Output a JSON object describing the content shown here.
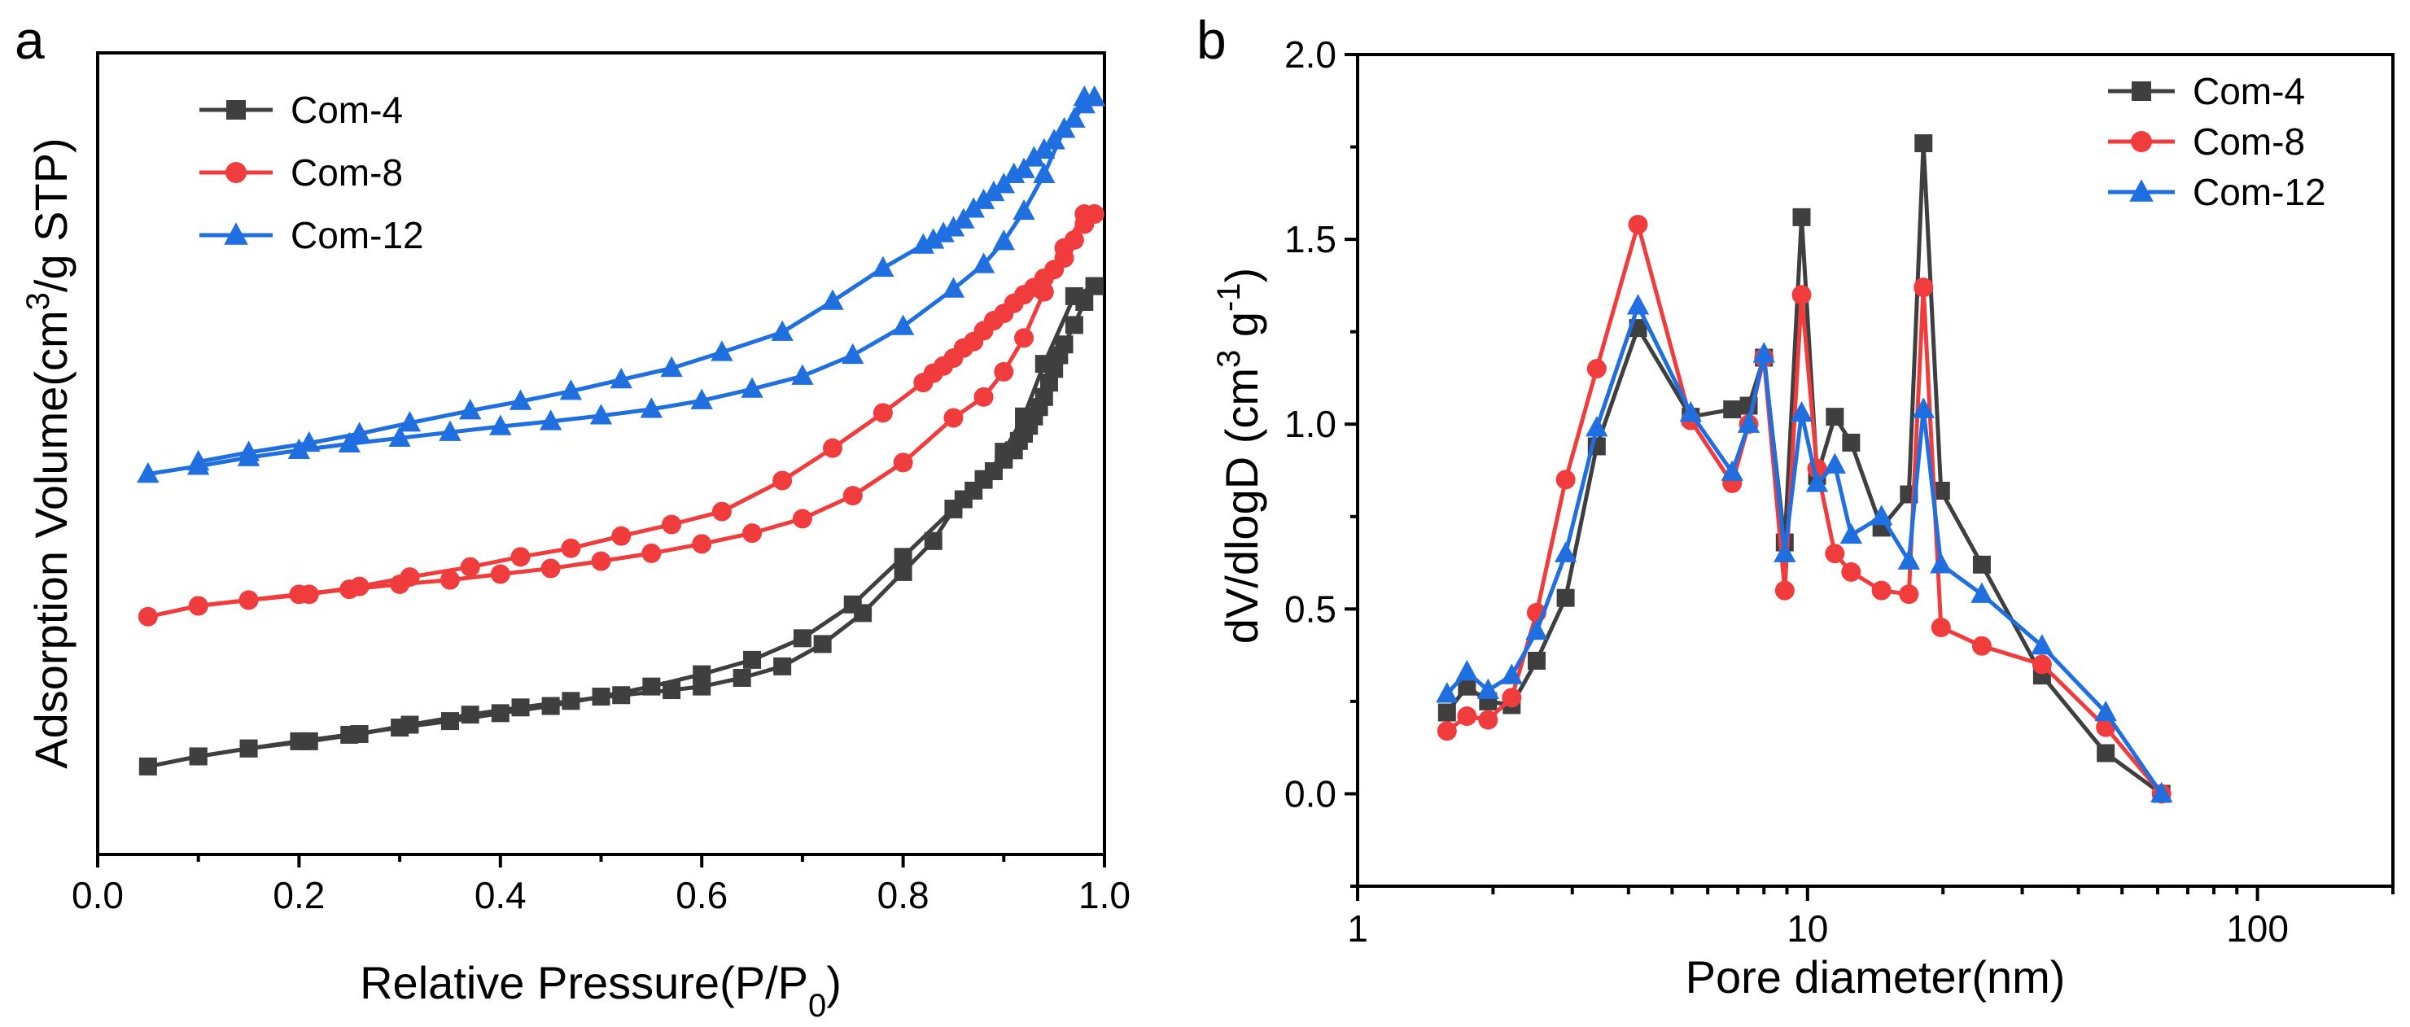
{
  "colors": {
    "com4": "#3f3f3f",
    "com8": "#f03c3c",
    "com12": "#1f6fe0"
  },
  "chart_data": [
    {
      "panel": "a",
      "type": "line",
      "title": "",
      "xlabel_main": "Relative Pressure(P/P",
      "xlabel_sub": "0",
      "xlabel_end": ")",
      "ylabel_main": "Adsorption Volume(cm",
      "ylabel_sup": "3",
      "ylabel_end": "/g STP)",
      "xlim": [
        0.0,
        1.0
      ],
      "ylim": [
        0,
        100
      ],
      "xticks": [
        "0.0",
        "0.2",
        "0.4",
        "0.6",
        "0.8",
        "1.0"
      ],
      "yticks_hidden": true,
      "legend_position": "top-left",
      "legend": [
        "Com-4",
        "Com-8",
        "Com-12"
      ],
      "series": [
        {
          "name": "Com-4",
          "color": "#3f3f3f",
          "marker": "square",
          "adsorption_x": [
            0.05,
            0.1,
            0.15,
            0.2,
            0.25,
            0.3,
            0.35,
            0.4,
            0.45,
            0.5,
            0.55,
            0.6,
            0.65,
            0.7,
            0.75,
            0.8,
            0.85,
            0.88,
            0.9,
            0.92,
            0.94,
            0.97,
            0.99
          ],
          "adsorption_y": [
            7.7,
            9.1,
            10.2,
            11.2,
            12.1,
            13.1,
            14.0,
            15.1,
            16.1,
            17.4,
            18.8,
            20.5,
            22.5,
            25.5,
            30.2,
            36.8,
            43.5,
            47.5,
            51.4,
            56.3,
            63.6,
            73.0,
            74.4
          ],
          "desorption_x": [
            0.99,
            0.98,
            0.97,
            0.96,
            0.955,
            0.95,
            0.945,
            0.94,
            0.935,
            0.93,
            0.925,
            0.92,
            0.915,
            0.91,
            0.9,
            0.89,
            0.88,
            0.87,
            0.86,
            0.85,
            0.83,
            0.8,
            0.76,
            0.72,
            0.68,
            0.64,
            0.6,
            0.57,
            0.52,
            0.47,
            0.42,
            0.37,
            0.31,
            0.26,
            0.21,
            0.15,
            0.1
          ],
          "desorption_y": [
            74.4,
            72.2,
            69.0,
            66.3,
            64.8,
            62.9,
            61.0,
            59.0,
            57.6,
            56.3,
            55.0,
            53.9,
            52.9,
            51.6,
            50.3,
            48.7,
            47.6,
            46.0,
            44.8,
            43.4,
            39.0,
            34.7,
            29.0,
            24.7,
            21.6,
            20.0,
            18.8,
            18.3,
            17.6,
            16.8,
            15.9,
            14.9,
            13.5,
            12.2,
            11.2,
            10.2,
            9.1
          ]
        },
        {
          "name": "Com-8",
          "color": "#f03c3c",
          "marker": "circle",
          "adsorption_x": [
            0.05,
            0.1,
            0.15,
            0.2,
            0.25,
            0.3,
            0.35,
            0.4,
            0.45,
            0.5,
            0.55,
            0.6,
            0.65,
            0.7,
            0.75,
            0.8,
            0.85,
            0.88,
            0.9,
            0.92,
            0.94,
            0.96,
            0.98,
            0.99
          ],
          "adsorption_y": [
            28.5,
            30.0,
            30.8,
            31.6,
            32.3,
            33.0,
            33.6,
            34.4,
            35.2,
            36.2,
            37.3,
            38.6,
            40.1,
            42.1,
            45.3,
            49.9,
            56.1,
            59.0,
            62.5,
            67.2,
            73.6,
            79.7,
            84.4,
            84.4
          ],
          "desorption_x": [
            0.99,
            0.98,
            0.97,
            0.96,
            0.95,
            0.94,
            0.93,
            0.92,
            0.91,
            0.9,
            0.89,
            0.88,
            0.87,
            0.86,
            0.85,
            0.84,
            0.83,
            0.82,
            0.78,
            0.73,
            0.68,
            0.62,
            0.57,
            0.52,
            0.47,
            0.42,
            0.37,
            0.31,
            0.26,
            0.21,
            0.15,
            0.1
          ],
          "desorption_y": [
            84.4,
            83.0,
            80.8,
            78.3,
            76.7,
            75.5,
            74.2,
            73.2,
            72.0,
            70.6,
            69.6,
            68.2,
            66.7,
            65.8,
            64.4,
            63.3,
            62.3,
            61.0,
            56.8,
            51.9,
            47.4,
            43.1,
            41.3,
            39.7,
            38.0,
            36.8,
            35.4,
            34.0,
            32.7,
            31.6,
            30.8,
            30.0
          ]
        },
        {
          "name": "Com-12",
          "color": "#1f6fe0",
          "marker": "triangle",
          "adsorption_x": [
            0.05,
            0.1,
            0.15,
            0.2,
            0.25,
            0.3,
            0.35,
            0.4,
            0.45,
            0.5,
            0.55,
            0.6,
            0.65,
            0.7,
            0.75,
            0.8,
            0.85,
            0.88,
            0.9,
            0.92,
            0.94,
            0.96,
            0.98,
            0.99
          ],
          "adsorption_y": [
            48.3,
            49.4,
            50.6,
            51.6,
            52.5,
            53.3,
            54.1,
            54.9,
            55.6,
            56.4,
            57.3,
            58.5,
            60.1,
            61.9,
            64.8,
            68.8,
            74.0,
            77.4,
            80.6,
            84.8,
            89.9,
            96.2,
            100.6,
            100.6
          ],
          "desorption_x": [
            0.99,
            0.98,
            0.97,
            0.96,
            0.95,
            0.94,
            0.93,
            0.92,
            0.91,
            0.9,
            0.89,
            0.88,
            0.87,
            0.86,
            0.85,
            0.84,
            0.83,
            0.82,
            0.78,
            0.73,
            0.68,
            0.62,
            0.57,
            0.52,
            0.47,
            0.42,
            0.37,
            0.31,
            0.26,
            0.21,
            0.15,
            0.1
          ],
          "desorption_y": [
            100.6,
            99.6,
            97.6,
            96.2,
            94.6,
            93.3,
            92.2,
            90.6,
            89.9,
            88.5,
            87.4,
            86.3,
            85.1,
            83.6,
            82.5,
            81.7,
            80.8,
            80.1,
            76.9,
            72.3,
            68.0,
            65.2,
            63.0,
            61.4,
            59.8,
            58.4,
            57.1,
            55.4,
            53.9,
            52.6,
            51.3,
            50.0
          ]
        }
      ]
    },
    {
      "panel": "b",
      "type": "line",
      "title": "",
      "xlabel": "Pore diameter(nm)",
      "ylabel_main": "dV/dlogD (cm",
      "ylabel_sup1": "3",
      "ylabel_mid": " g",
      "ylabel_sup2": "-1",
      "ylabel_end": ")",
      "xscale": "log",
      "xlim": [
        1,
        200
      ],
      "ylim": [
        -0.25,
        2.0
      ],
      "xticks": [
        "1",
        "10",
        "100"
      ],
      "yticks": [
        "0.0",
        "0.5",
        "1.0",
        "1.5",
        "2.0"
      ],
      "legend_position": "top-right",
      "legend": [
        "Com-4",
        "Com-8",
        "Com-12"
      ],
      "series": [
        {
          "name": "Com-4",
          "color": "#3f3f3f",
          "marker": "square",
          "x": [
            1.58,
            1.75,
            1.95,
            2.2,
            2.5,
            2.9,
            3.4,
            4.2,
            5.5,
            6.8,
            7.4,
            8.0,
            8.9,
            9.7,
            10.5,
            11.5,
            12.5,
            14.6,
            16.8,
            18.1,
            19.8,
            24.4,
            33.2,
            46.0,
            61.2
          ],
          "y": [
            0.22,
            0.29,
            0.25,
            0.24,
            0.36,
            0.53,
            0.94,
            1.26,
            1.02,
            1.04,
            1.05,
            1.18,
            0.68,
            1.56,
            0.86,
            1.02,
            0.95,
            0.72,
            0.81,
            1.76,
            0.82,
            0.62,
            0.32,
            0.11,
            0.0
          ]
        },
        {
          "name": "Com-8",
          "color": "#f03c3c",
          "marker": "circle",
          "x": [
            1.58,
            1.75,
            1.95,
            2.2,
            2.5,
            2.9,
            3.4,
            4.2,
            5.5,
            6.8,
            7.4,
            8.0,
            8.9,
            9.7,
            10.5,
            11.5,
            12.5,
            14.6,
            16.8,
            18.1,
            19.8,
            24.4,
            33.2,
            46.0,
            61.2
          ],
          "y": [
            0.17,
            0.21,
            0.2,
            0.26,
            0.49,
            0.85,
            1.15,
            1.54,
            1.01,
            0.84,
            1.0,
            1.18,
            0.55,
            1.35,
            0.88,
            0.65,
            0.6,
            0.55,
            0.54,
            1.37,
            0.45,
            0.4,
            0.35,
            0.18,
            0.0
          ]
        },
        {
          "name": "Com-12",
          "color": "#1f6fe0",
          "marker": "triangle",
          "x": [
            1.58,
            1.75,
            1.95,
            2.2,
            2.5,
            2.9,
            3.4,
            4.2,
            5.5,
            6.8,
            7.4,
            8.0,
            8.9,
            9.7,
            10.5,
            11.5,
            12.5,
            14.6,
            16.8,
            18.1,
            19.8,
            24.4,
            33.2,
            46.0,
            61.2
          ],
          "y": [
            0.27,
            0.33,
            0.28,
            0.32,
            0.44,
            0.65,
            0.99,
            1.32,
            1.03,
            0.87,
            1.0,
            1.19,
            0.65,
            1.03,
            0.84,
            0.89,
            0.7,
            0.75,
            0.63,
            1.04,
            0.62,
            0.54,
            0.4,
            0.22,
            0.0
          ]
        }
      ]
    }
  ]
}
